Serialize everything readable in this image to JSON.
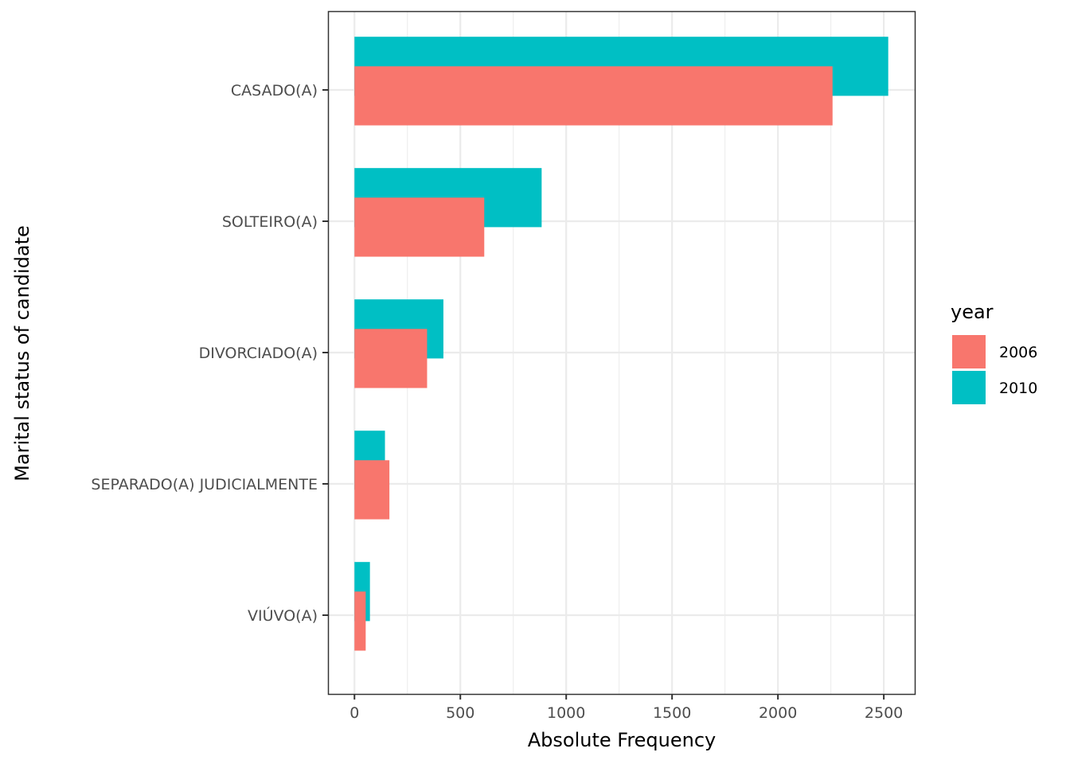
{
  "chart_data": {
    "type": "bar",
    "orientation": "horizontal",
    "title": "",
    "xlabel": "Absolute Frequency",
    "ylabel": "Marital status of candidate",
    "categories": [
      "CASADO(A)",
      "SOLTEIRO(A)",
      "DIVORCIADO(A)",
      "SEPARADO(A) JUDICIALMENTE",
      "VIÚVO(A)"
    ],
    "series": [
      {
        "name": "2006",
        "color": "#F8766D",
        "values": [
          2258,
          613,
          343,
          165,
          53
        ]
      },
      {
        "name": "2010",
        "color": "#00BFC4",
        "values": [
          2521,
          884,
          420,
          144,
          73
        ]
      }
    ],
    "xlim": [
      -125,
      2650
    ],
    "xticks": [
      0,
      500,
      1000,
      1500,
      2000,
      2500
    ],
    "xtick_labels": [
      "0",
      "500",
      "1000",
      "1500",
      "2000",
      "2500"
    ],
    "grid": true,
    "legend": {
      "title": "year",
      "position": "right",
      "entries": [
        "2006",
        "2010"
      ]
    }
  }
}
